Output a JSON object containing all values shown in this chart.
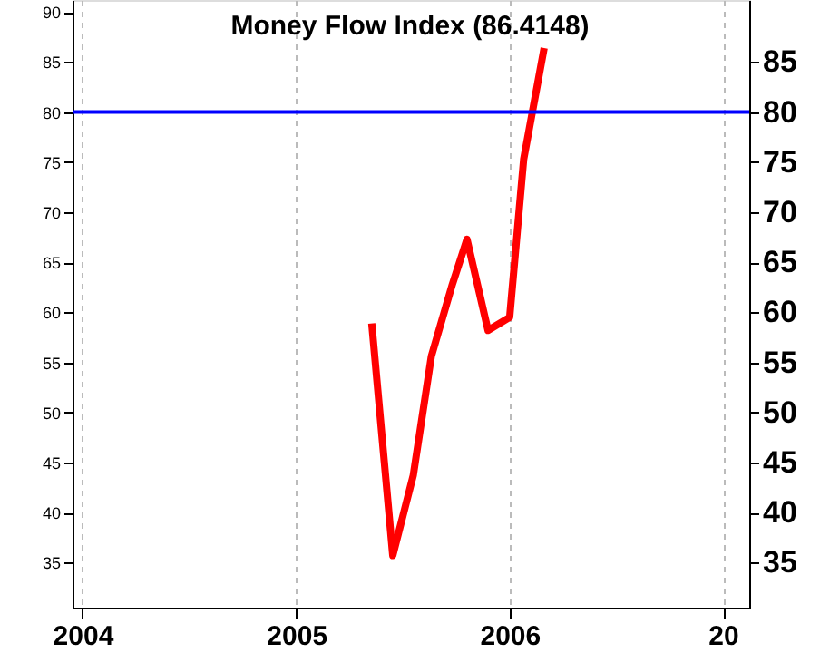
{
  "chart_data": {
    "type": "line",
    "title": "Money Flow Index (86.4148)",
    "x": [
      "2005-05-10",
      "2005-06-15",
      "2005-07-20",
      "2005-08-20",
      "2005-09-25",
      "2005-10-20",
      "2005-11-25",
      "2006-01-01",
      "2006-01-25",
      "2006-03-01"
    ],
    "series": [
      {
        "color": "#ff0000",
        "values": [
          58.9,
          35.7,
          43.7,
          55.6,
          62.8,
          67.3,
          58.2,
          59.5,
          75.3,
          86.4
        ]
      }
    ],
    "xlim": [
      "2003-12-15",
      "2007-02-15"
    ],
    "xticks": [
      {
        "value": "2004-01-01",
        "label": "2004"
      },
      {
        "value": "2005-01-01",
        "label": "2005"
      },
      {
        "value": "2006-01-01",
        "label": "2006"
      },
      {
        "value": "2007-01-01",
        "label": "20"
      }
    ],
    "ylim": [
      30.5,
      91.2
    ],
    "yticks": [
      35,
      40,
      45,
      50,
      55,
      60,
      65,
      70,
      75,
      80,
      85,
      90
    ],
    "y2lim": [
      30.5,
      91.2
    ],
    "y2ticks": [
      35,
      40,
      45,
      50,
      55,
      60,
      65,
      70,
      75,
      80,
      85
    ],
    "grid": "x",
    "line_style": "solid",
    "ref_lines": [
      {
        "axis": "y",
        "value": 80,
        "color": "#0000ff"
      }
    ]
  }
}
